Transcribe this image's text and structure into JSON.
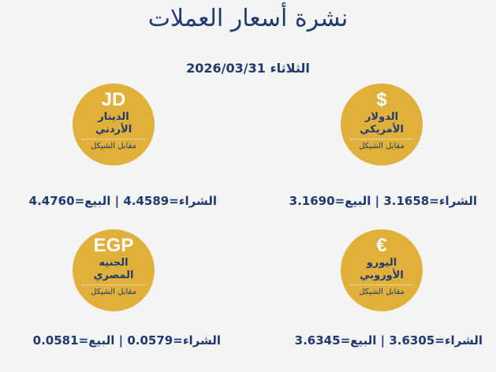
{
  "header": {
    "title": "نشرة أسعار العملات",
    "date_day": "الثلاثاء",
    "date": "2026/03/31"
  },
  "colors": {
    "background": "#f4f4f4",
    "text": "#1f3a6e",
    "badge": "#e0b03a"
  },
  "currencies": [
    {
      "symbol": "$",
      "name_line1": "الدولار",
      "name_line2": "الأمريكي",
      "subtitle": "مقابل الشيكل",
      "buy_label": "الشراء=",
      "buy": "3.1658",
      "sep": "|",
      "sell_label": "البيع=",
      "sell": "3.1690"
    },
    {
      "symbol": "JD",
      "name_line1": "الدينار",
      "name_line2": "الأردني",
      "subtitle": "مقابل الشيكل",
      "buy_label": "الشراء=",
      "buy": "4.4589",
      "sep": "|",
      "sell_label": "البيع=",
      "sell": "4.4760"
    },
    {
      "symbol": "€",
      "name_line1": "اليورو",
      "name_line2": "الأوروبي",
      "subtitle": "مقابل الشيكل",
      "buy_label": "الشراء=",
      "buy": "3.6305",
      "sep": "|",
      "sell_label": "البيع=",
      "sell": "3.6345"
    },
    {
      "symbol": "EGP",
      "name_line1": "الجنيه",
      "name_line2": "المصري",
      "subtitle": "مقابل الشيكل",
      "buy_label": "الشراء=",
      "buy": "0.0579",
      "sep": "|",
      "sell_label": "البيع=",
      "sell": "0.0581"
    }
  ]
}
